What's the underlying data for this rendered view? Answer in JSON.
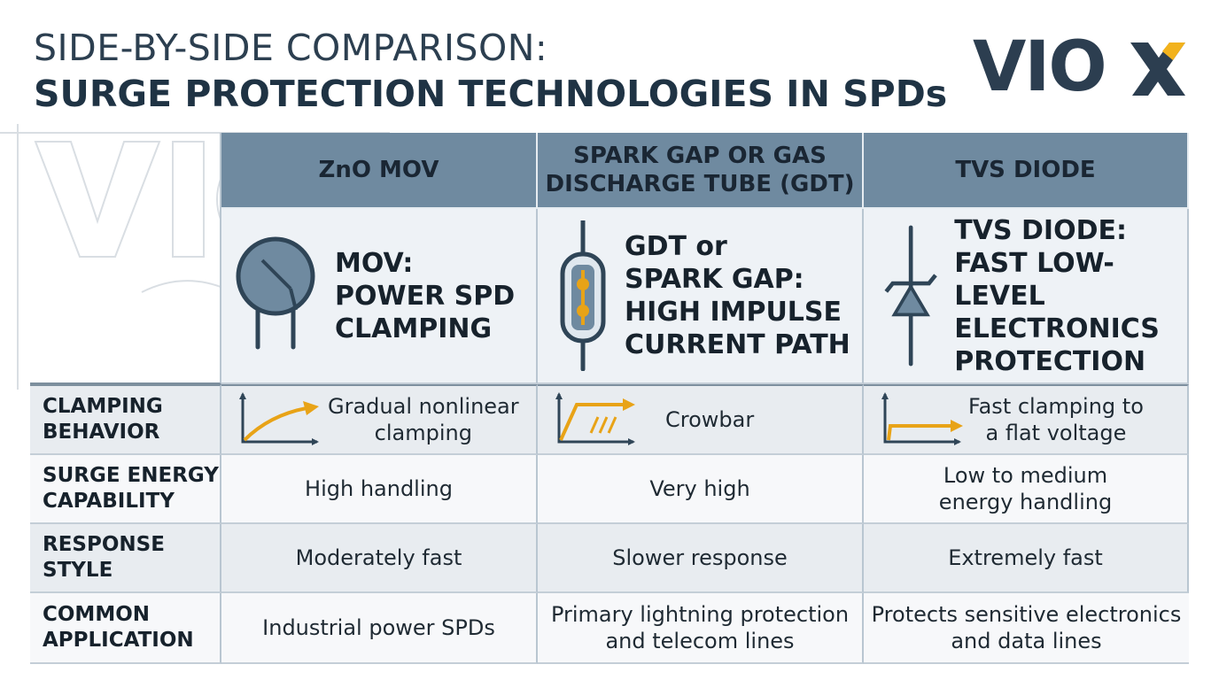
{
  "title": {
    "line1": "SIDE-BY-SIDE COMPARISON:",
    "line2": "SURGE PROTECTION TECHNOLOGIES IN SPDs"
  },
  "logo": {
    "text": "VIOX",
    "accent_color": "#f2b21c",
    "text_color": "#2c3e50"
  },
  "columns": [
    {
      "header": "ZnO MOV",
      "icon": "mov-varistor-icon",
      "icon_label": "MOV:\nPOWER SPD\nCLAMPING"
    },
    {
      "header": "SPARK GAP OR GAS\nDISCHARGE TUBE (GDT)",
      "icon": "gdt-tube-icon",
      "icon_label": "GDT or\nSPARK GAP:\nHIGH IMPULSE\nCURRENT PATH"
    },
    {
      "header": "TVS DIODE",
      "icon": "tvs-diode-icon",
      "icon_label": "TVS DIODE:\nFAST LOW-LEVEL\nELECTRONICS\nPROTECTION"
    }
  ],
  "rows": [
    {
      "label": "CLAMPING\nBEHAVIOR",
      "values": [
        "Gradual nonlinear\nclamping",
        "Crowbar",
        "Fast clamping to\na flat voltage"
      ],
      "icons": [
        "nonlinear-curve-icon",
        "crowbar-curve-icon",
        "flat-clamp-curve-icon"
      ]
    },
    {
      "label": "SURGE ENERGY\nCAPABILITY",
      "values": [
        "High handling",
        "Very high",
        "Low to medium\nenergy handling"
      ]
    },
    {
      "label": "RESPONSE\nSTYLE",
      "values": [
        "Moderately fast",
        "Slower response",
        "Extremely fast"
      ]
    },
    {
      "label": "COMMON\nAPPLICATION",
      "values": [
        "Industrial power SPDs",
        "Primary lightning protection\nand telecom lines",
        "Protects sensitive electronics\nand data lines"
      ]
    }
  ],
  "colors": {
    "header_bg": "#6f8aa0",
    "accent": "#e8a317",
    "icon_stroke": "#2f4557",
    "row_alt": "#e8ecf0"
  }
}
